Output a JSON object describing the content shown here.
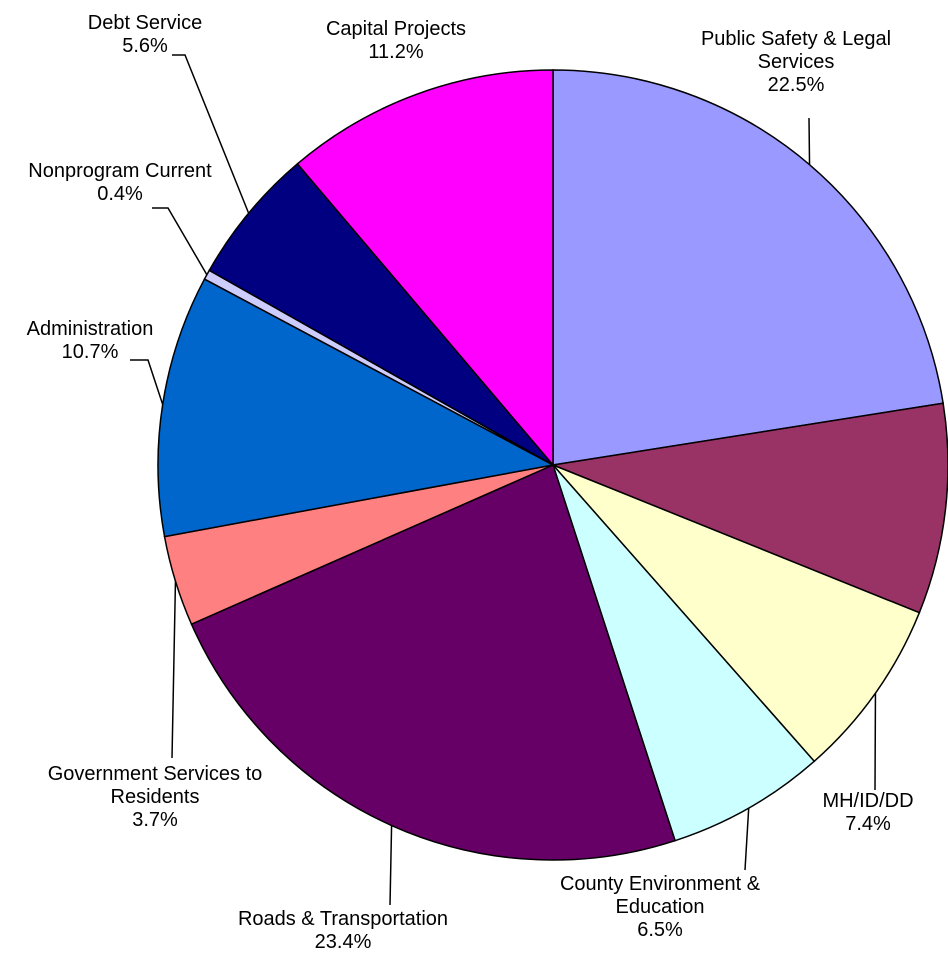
{
  "chart_data": {
    "type": "pie",
    "categories": [
      "Public Safety & Legal Services",
      null,
      "MH/ID/DD",
      "County Environment & Education",
      "Roads & Transportation",
      "Government Services to Residents",
      "Administration",
      "Nonprogram Current",
      "Debt Service",
      "Capital Projects"
    ],
    "values": [
      22.5,
      8.6,
      7.4,
      6.5,
      23.4,
      3.7,
      10.7,
      0.4,
      5.6,
      11.2
    ],
    "value_labels": [
      "22.5%",
      null,
      "7.4%",
      "6.5%",
      "23.4%",
      "3.7%",
      "10.7%",
      "0.4%",
      "5.6%",
      "11.2%"
    ],
    "colors": [
      "#9999ff",
      "#993366",
      "#ffffcc",
      "#ccffff",
      "#660066",
      "#ff8080",
      "#0066cc",
      "#ccccff",
      "#000080",
      "#ff00ff"
    ]
  }
}
